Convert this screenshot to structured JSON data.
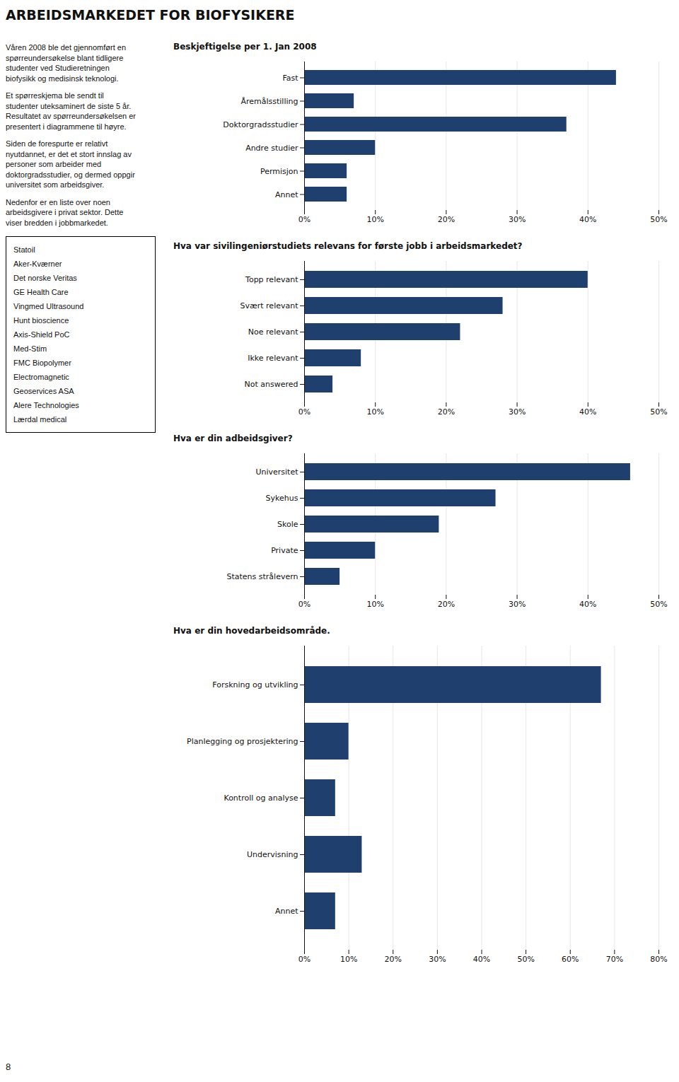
{
  "title": "ARBEIDSMARKEDET FOR BIOFYSIKERE",
  "annotations": {
    "text": [
      [
        "Våren 2008 ble det gjennomført en",
        "spørreundersøkelse blant tidligere",
        "studenter ved Studieretningen",
        "biofysikk og medisinsk teknologi."
      ],
      [
        "Et spørreskjema ble sendt til",
        "studenter uteksaminert de siste 5 år.",
        "Resultatet av spørreundersøkelsen er",
        "presentert i diagrammene til høyre."
      ],
      [
        "Siden de forespurte er relativt",
        "nyutdannet, er det et stort innslag av",
        "personer som arbeider med",
        "doktorgradsstudier, og dermed oppgir",
        "universitet som arbeidsgiver."
      ],
      [
        "Nedenfor er en liste over noen",
        "arbeidsgivere i privat sektor. Dette",
        "viser bredden i jobbmarkedet."
      ]
    ],
    "list": [
      "Statoil",
      "Aker-Kværner",
      "Det norske Veritas",
      "GE Health Care",
      "Vingmed Ultrasound",
      "Hunt bioscience",
      "Axis-Shield PoC",
      "Med-Stim",
      "FMC Biopolymer",
      "Electromagnetic",
      "Geoservices ASA",
      "Alere Technologies",
      "Lærdal medical"
    ],
    "footer": "8"
  },
  "chart_data": [
    {
      "type": "bar",
      "orientation": "horizontal",
      "title": "Beskjeftigelse per 1. Jan 2008",
      "categories": [
        "Fast",
        "Åremålsstilling",
        "Doktorgradsstudier",
        "Andre studier",
        "Permisjon",
        "Annet"
      ],
      "values": [
        44,
        7,
        37,
        10,
        6,
        6
      ],
      "color": "#1f3f6e",
      "xlim": [
        0,
        50
      ],
      "xticks": [
        {
          "value": 0,
          "label": "0%"
        },
        {
          "value": 10,
          "label": "10%"
        },
        {
          "value": 20,
          "label": "20%"
        },
        {
          "value": 30,
          "label": "30%"
        },
        {
          "value": 40,
          "label": "40%"
        },
        {
          "value": 50,
          "label": "50%"
        }
      ],
      "grid": true
    },
    {
      "type": "bar",
      "orientation": "horizontal",
      "title": "Hva var sivilingeniørstudiets relevans for første jobb i arbeidsmarkedet?",
      "categories": [
        "Topp relevant",
        "Svært relevant",
        "Noe relevant",
        "Ikke relevant",
        "Not answered"
      ],
      "values": [
        40,
        28,
        22,
        8,
        4
      ],
      "color": "#1f3f6e",
      "xlim": [
        0,
        50
      ],
      "xticks": [
        {
          "value": 0,
          "label": "0%"
        },
        {
          "value": 10,
          "label": "10%"
        },
        {
          "value": 20,
          "label": "20%"
        },
        {
          "value": 30,
          "label": "30%"
        },
        {
          "value": 40,
          "label": "40%"
        },
        {
          "value": 50,
          "label": "50%"
        }
      ],
      "grid": true
    },
    {
      "type": "bar",
      "orientation": "horizontal",
      "title": "Hva er din adbeidsgiver?",
      "categories": [
        "Universitet",
        "Sykehus",
        "Skole",
        "Private",
        "Statens strålevern"
      ],
      "values": [
        46,
        27,
        19,
        10,
        5
      ],
      "color": "#1f3f6e",
      "xlim": [
        0,
        50
      ],
      "xticks": [
        {
          "value": 0,
          "label": "0%"
        },
        {
          "value": 10,
          "label": "10%"
        },
        {
          "value": 20,
          "label": "20%"
        },
        {
          "value": 30,
          "label": "30%"
        },
        {
          "value": 40,
          "label": "40%"
        },
        {
          "value": 50,
          "label": "50%"
        }
      ],
      "grid": true
    },
    {
      "type": "bar",
      "orientation": "horizontal",
      "title": "Hva er din hovedarbeidsområde.",
      "categories": [
        "Forskning og utvikling",
        "Planlegging og prosjektering",
        "Kontroll og analyse",
        "Undervisning",
        "Annet"
      ],
      "values": [
        67,
        10,
        7,
        13,
        7
      ],
      "color": "#1f3f6e",
      "xlim": [
        0,
        80
      ],
      "xticks": [
        {
          "value": 0,
          "label": "0%"
        },
        {
          "value": 10,
          "label": "10%"
        },
        {
          "value": 20,
          "label": "20%"
        },
        {
          "value": 30,
          "label": "30%"
        },
        {
          "value": 40,
          "label": "40%"
        },
        {
          "value": 50,
          "label": "50%"
        },
        {
          "value": 60,
          "label": "60%"
        },
        {
          "value": 70,
          "label": "70%"
        },
        {
          "value": 80,
          "label": "80%"
        }
      ],
      "grid": true
    }
  ]
}
